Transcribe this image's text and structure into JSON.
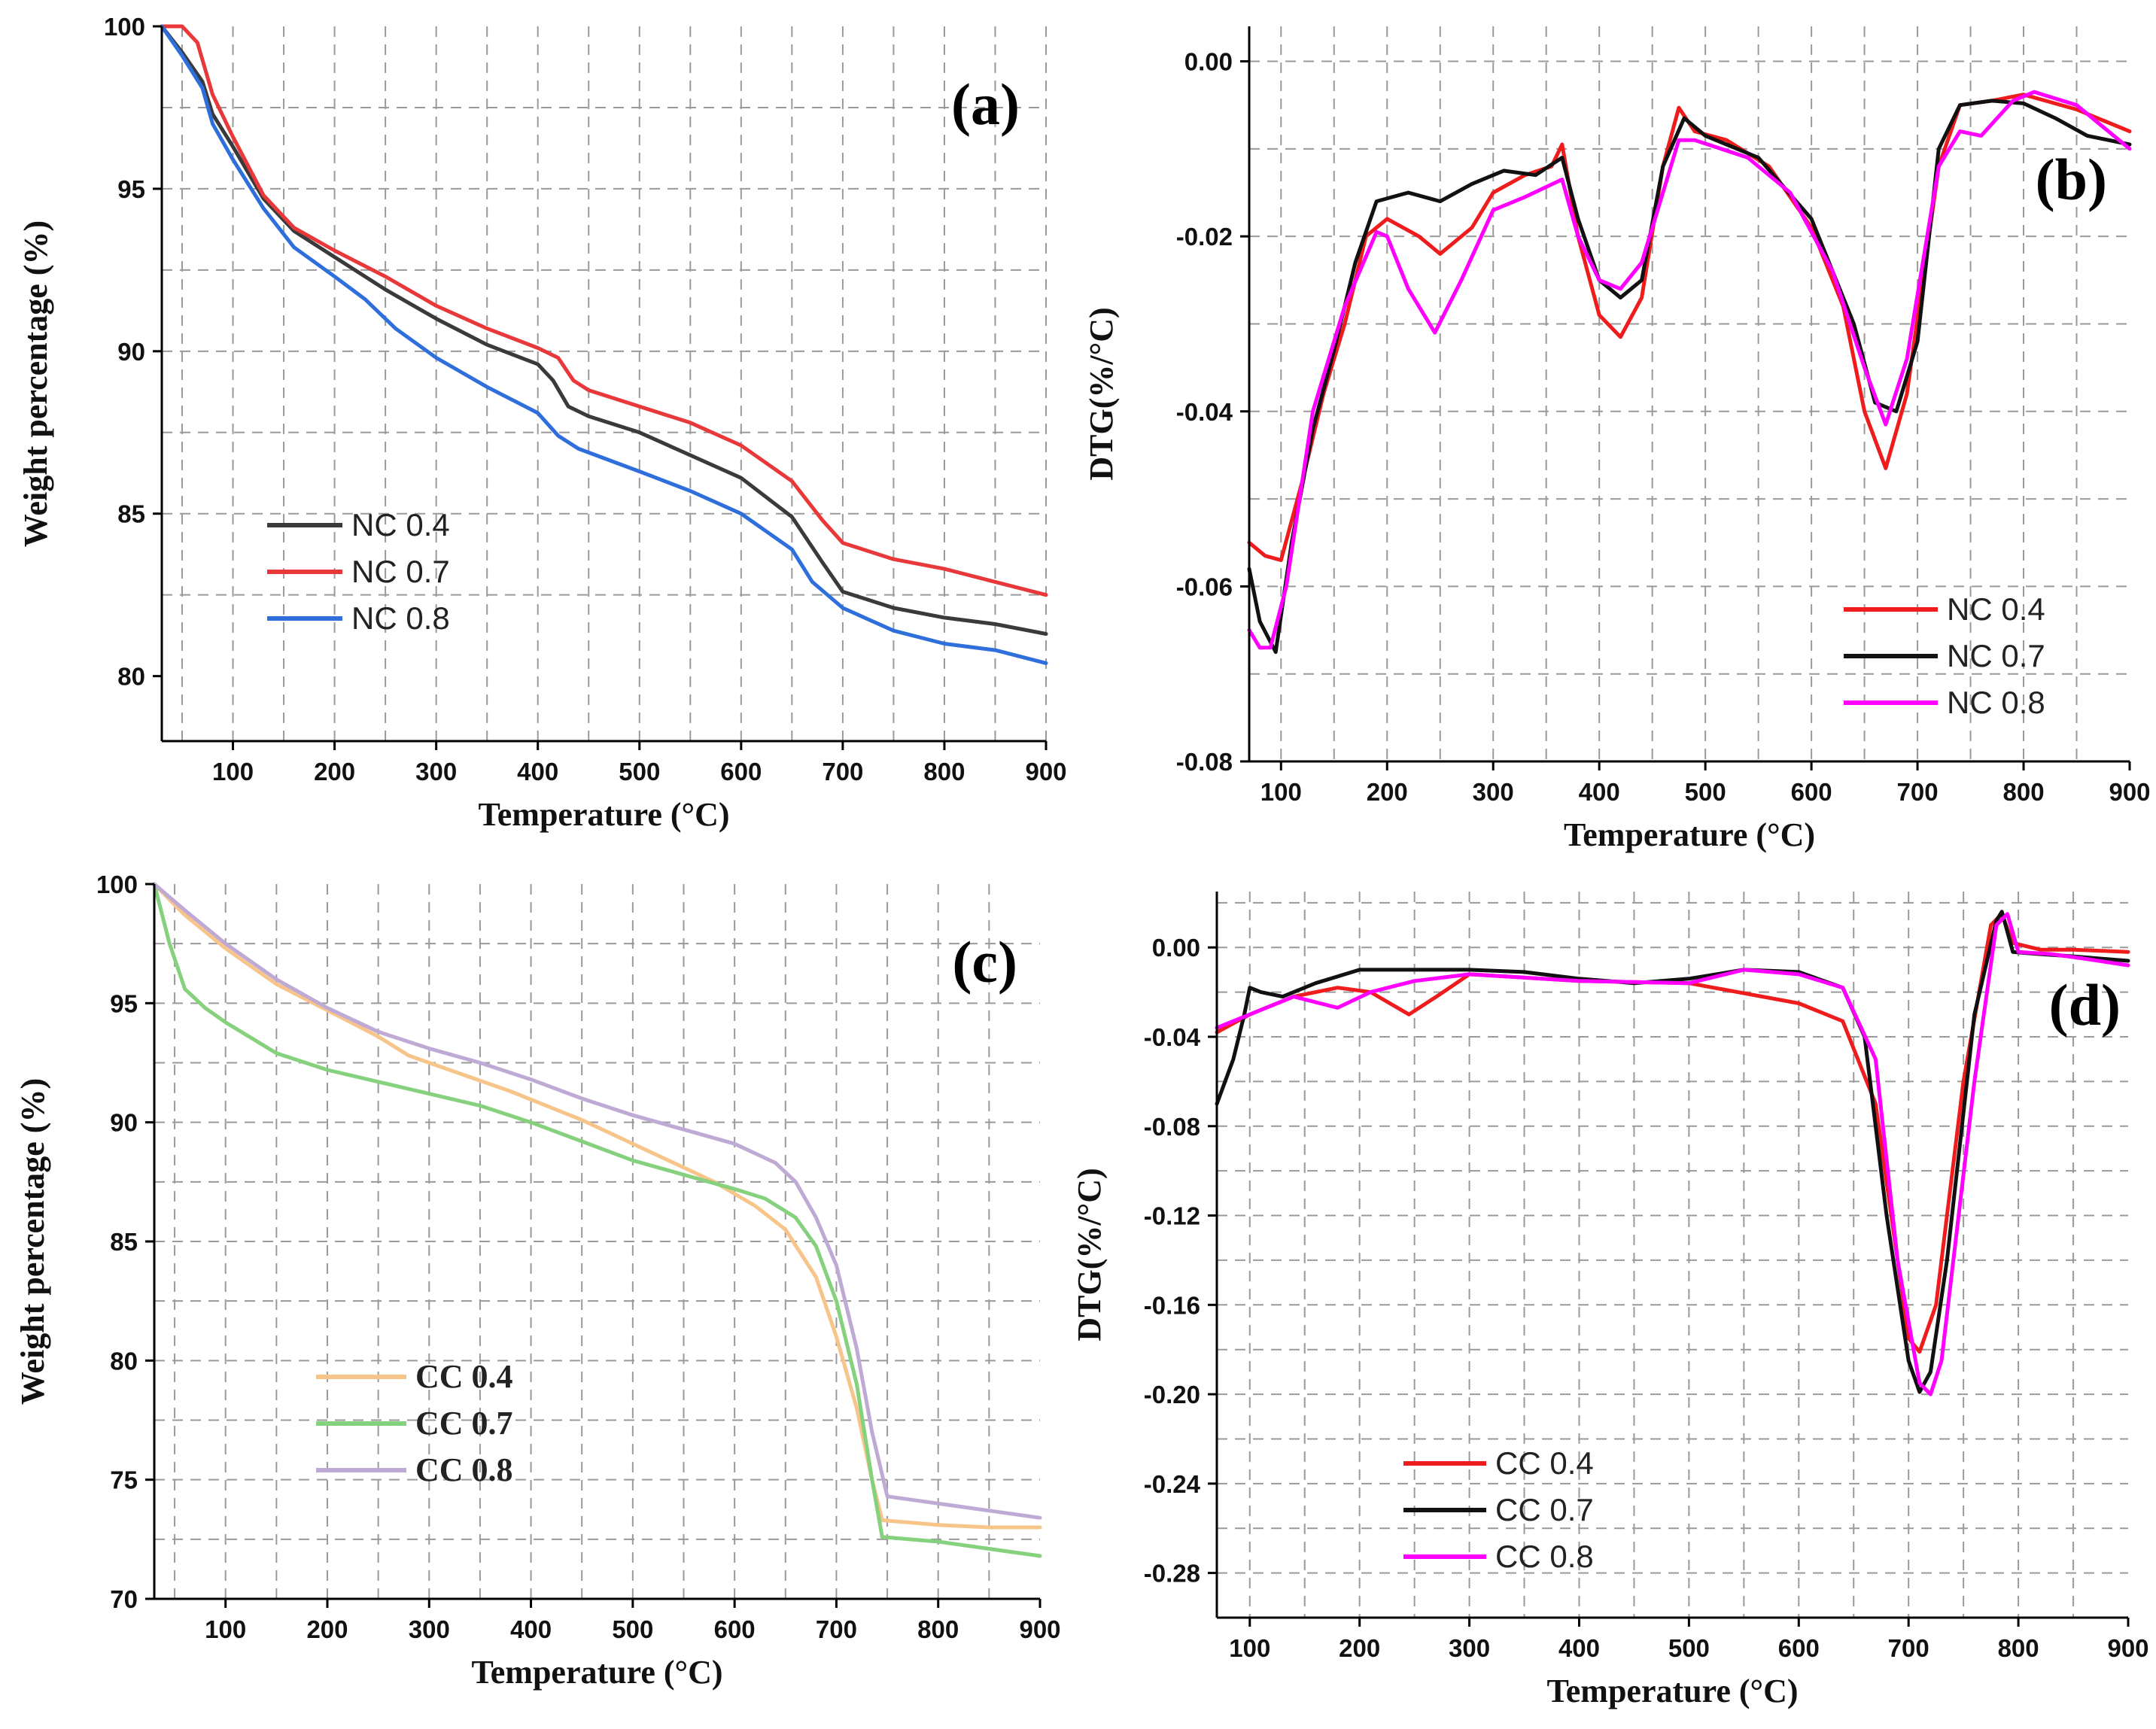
{
  "figure": {
    "colors": {
      "axis": "#000000",
      "grid": "#9a9a9a"
    }
  },
  "chart_data": [
    {
      "id": "a",
      "type": "line",
      "panel_label": "(a)",
      "xlabel": "Temperature (°C)",
      "ylabel": "Weight percentage (%)",
      "xlim": [
        30,
        900
      ],
      "ylim": [
        78,
        100
      ],
      "xticks": [
        "100",
        "200",
        "300",
        "400",
        "500",
        "600",
        "700",
        "800",
        "900"
      ],
      "xtick_values": [
        100,
        200,
        300,
        400,
        500,
        600,
        700,
        800,
        900
      ],
      "yticks": [
        "80",
        "85",
        "90",
        "95",
        "100"
      ],
      "ytick_values": [
        80,
        85,
        90,
        95,
        100
      ],
      "x_grid": [
        50,
        100,
        150,
        200,
        250,
        300,
        350,
        400,
        450,
        500,
        550,
        600,
        650,
        700,
        750,
        800,
        850,
        900
      ],
      "y_grid": [
        82.5,
        85,
        87.5,
        90,
        92.5,
        95,
        97.5
      ],
      "legend_position": "middle-left",
      "series": [
        {
          "name": "NC 0.4",
          "color": "#3a3a3a",
          "x": [
            30,
            50,
            70,
            80,
            100,
            130,
            160,
            200,
            250,
            300,
            350,
            400,
            415,
            430,
            450,
            500,
            550,
            600,
            650,
            680,
            700,
            750,
            800,
            850,
            900
          ],
          "y": [
            100,
            99.2,
            98.3,
            97.3,
            96.3,
            94.7,
            93.7,
            92.9,
            91.9,
            91,
            90.2,
            89.6,
            89.1,
            88.3,
            88,
            87.5,
            86.8,
            86.1,
            84.9,
            83.5,
            82.6,
            82.1,
            81.8,
            81.6,
            81.3
          ]
        },
        {
          "name": "NC 0.7",
          "color": "#e8383a",
          "x": [
            30,
            50,
            65,
            80,
            100,
            130,
            160,
            200,
            250,
            300,
            350,
            400,
            420,
            435,
            450,
            500,
            550,
            600,
            650,
            680,
            700,
            750,
            800,
            850,
            900
          ],
          "y": [
            100,
            100,
            99.5,
            97.9,
            96.6,
            94.8,
            93.8,
            93.1,
            92.3,
            91.4,
            90.7,
            90.1,
            89.8,
            89.1,
            88.8,
            88.3,
            87.8,
            87.1,
            86,
            84.8,
            84.1,
            83.6,
            83.3,
            82.9,
            82.5
          ]
        },
        {
          "name": "NC 0.8",
          "color": "#2f6fdc",
          "x": [
            30,
            50,
            70,
            80,
            100,
            130,
            160,
            200,
            230,
            260,
            300,
            350,
            400,
            420,
            440,
            500,
            550,
            600,
            650,
            670,
            700,
            750,
            800,
            850,
            900
          ],
          "y": [
            100,
            99.1,
            98.1,
            97,
            95.9,
            94.4,
            93.2,
            92.3,
            91.6,
            90.7,
            89.8,
            88.9,
            88.1,
            87.4,
            87,
            86.3,
            85.7,
            85,
            83.9,
            82.9,
            82.1,
            81.4,
            81,
            80.8,
            80.4
          ]
        }
      ]
    },
    {
      "id": "b",
      "type": "line",
      "panel_label": "(b)",
      "xlabel": "Temperature (°C)",
      "ylabel": "DTG(%/°C)",
      "xlim": [
        70,
        900
      ],
      "ylim": [
        -0.08,
        0.004
      ],
      "xticks": [
        "100",
        "200",
        "300",
        "400",
        "500",
        "600",
        "700",
        "800",
        "900"
      ],
      "xtick_values": [
        100,
        200,
        300,
        400,
        500,
        600,
        700,
        800,
        900
      ],
      "yticks": [
        "0.00",
        "-0.02",
        "-0.04",
        "-0.06",
        "-0.08"
      ],
      "ytick_values": [
        0,
        -0.02,
        -0.04,
        -0.06,
        -0.08
      ],
      "x_grid": [
        100,
        150,
        200,
        250,
        300,
        350,
        400,
        450,
        500,
        550,
        600,
        650,
        700,
        750,
        800,
        850
      ],
      "y_grid": [
        -0.07,
        -0.06,
        -0.05,
        -0.04,
        -0.03,
        -0.02,
        -0.01,
        0
      ],
      "legend_position": "bottom-right",
      "series": [
        {
          "name": "NC 0.4",
          "color": "#ee1c1c",
          "x": [
            70,
            85,
            100,
            120,
            140,
            160,
            180,
            200,
            230,
            250,
            280,
            300,
            330,
            355,
            365,
            380,
            400,
            420,
            440,
            460,
            475,
            490,
            520,
            560,
            600,
            630,
            650,
            670,
            690,
            720,
            740,
            770,
            800,
            850,
            900
          ],
          "y": [
            -0.055,
            -0.0565,
            -0.057,
            -0.048,
            -0.038,
            -0.03,
            -0.02,
            -0.018,
            -0.02,
            -0.022,
            -0.019,
            -0.015,
            -0.013,
            -0.012,
            -0.0095,
            -0.02,
            -0.029,
            -0.0315,
            -0.027,
            -0.012,
            -0.0053,
            -0.008,
            -0.009,
            -0.012,
            -0.019,
            -0.028,
            -0.04,
            -0.0465,
            -0.038,
            -0.012,
            -0.005,
            -0.0045,
            -0.0038,
            -0.0055,
            -0.008
          ]
        },
        {
          "name": "NC 0.7",
          "color": "#111111",
          "x": [
            70,
            80,
            95,
            110,
            130,
            150,
            170,
            190,
            220,
            250,
            280,
            310,
            340,
            365,
            380,
            400,
            420,
            440,
            460,
            480,
            500,
            550,
            600,
            640,
            660,
            680,
            700,
            720,
            740,
            770,
            800,
            830,
            860,
            900
          ],
          "y": [
            -0.058,
            -0.064,
            -0.0675,
            -0.055,
            -0.042,
            -0.033,
            -0.023,
            -0.016,
            -0.015,
            -0.016,
            -0.014,
            -0.0125,
            -0.013,
            -0.011,
            -0.018,
            -0.025,
            -0.027,
            -0.025,
            -0.012,
            -0.0065,
            -0.0085,
            -0.011,
            -0.018,
            -0.03,
            -0.039,
            -0.04,
            -0.032,
            -0.01,
            -0.005,
            -0.0045,
            -0.0048,
            -0.0065,
            -0.0085,
            -0.0095
          ]
        },
        {
          "name": "NC 0.8",
          "color": "#ff00ff",
          "x": [
            70,
            80,
            90,
            105,
            130,
            160,
            190,
            200,
            220,
            245,
            270,
            300,
            330,
            365,
            380,
            400,
            420,
            440,
            460,
            475,
            490,
            540,
            580,
            620,
            650,
            670,
            690,
            720,
            740,
            760,
            790,
            810,
            850,
            900
          ],
          "y": [
            -0.065,
            -0.067,
            -0.067,
            -0.06,
            -0.04,
            -0.028,
            -0.0195,
            -0.02,
            -0.026,
            -0.031,
            -0.025,
            -0.017,
            -0.0155,
            -0.0135,
            -0.02,
            -0.025,
            -0.026,
            -0.023,
            -0.015,
            -0.009,
            -0.009,
            -0.011,
            -0.015,
            -0.024,
            -0.035,
            -0.0415,
            -0.034,
            -0.012,
            -0.008,
            -0.0085,
            -0.0045,
            -0.0035,
            -0.005,
            -0.01
          ]
        }
      ]
    },
    {
      "id": "c",
      "type": "line",
      "panel_label": "(c)",
      "xlabel": "Temperature (°C)",
      "ylabel": "Weight percentage (%)",
      "xlim": [
        30,
        900
      ],
      "ylim": [
        70,
        100
      ],
      "xticks": [
        "100",
        "200",
        "300",
        "400",
        "500",
        "600",
        "700",
        "800",
        "900"
      ],
      "xtick_values": [
        100,
        200,
        300,
        400,
        500,
        600,
        700,
        800,
        900
      ],
      "yticks": [
        "70",
        "75",
        "80",
        "85",
        "90",
        "95",
        "100"
      ],
      "ytick_values": [
        70,
        75,
        80,
        85,
        90,
        95,
        100
      ],
      "x_grid": [
        50,
        100,
        150,
        200,
        250,
        300,
        350,
        400,
        450,
        500,
        550,
        600,
        650,
        700,
        750,
        800,
        850
      ],
      "y_grid": [
        72.5,
        75,
        77.5,
        80,
        82.5,
        85,
        87.5,
        90,
        92.5,
        95,
        97.5
      ],
      "legend_position": "bottom-left",
      "series": [
        {
          "name": "CC 0.4",
          "color": "#f7c58a",
          "x": [
            30,
            60,
            100,
            150,
            200,
            250,
            280,
            320,
            380,
            450,
            520,
            580,
            620,
            650,
            680,
            700,
            720,
            735,
            745,
            800,
            850,
            900
          ],
          "y": [
            100,
            98.7,
            97.3,
            95.8,
            94.7,
            93.6,
            92.8,
            92.2,
            91.3,
            90.1,
            88.7,
            87.5,
            86.5,
            85.5,
            83.5,
            81,
            78,
            75,
            73.3,
            73.1,
            73,
            73
          ]
        },
        {
          "name": "CC 0.7",
          "color": "#86d17e",
          "x": [
            30,
            45,
            60,
            80,
            100,
            150,
            200,
            300,
            350,
            400,
            450,
            500,
            550,
            600,
            630,
            660,
            680,
            700,
            720,
            735,
            745,
            800,
            850,
            900
          ],
          "y": [
            100,
            97.5,
            95.6,
            94.8,
            94.2,
            92.9,
            92.2,
            91.2,
            90.7,
            90,
            89.2,
            88.4,
            87.8,
            87.2,
            86.8,
            86,
            84.8,
            82.5,
            79,
            75,
            72.6,
            72.4,
            72.1,
            71.8
          ]
        },
        {
          "name": "CC 0.8",
          "color": "#bfaad5",
          "x": [
            30,
            60,
            100,
            150,
            200,
            250,
            300,
            350,
            400,
            450,
            500,
            550,
            600,
            640,
            660,
            680,
            700,
            720,
            735,
            750,
            800,
            850,
            900
          ],
          "y": [
            100,
            98.9,
            97.5,
            96,
            94.8,
            93.8,
            93.1,
            92.5,
            91.8,
            91,
            90.3,
            89.7,
            89.1,
            88.3,
            87.5,
            86,
            84,
            80.5,
            77,
            74.3,
            74,
            73.7,
            73.4
          ]
        }
      ]
    },
    {
      "id": "d",
      "type": "line",
      "panel_label": "(d)",
      "xlabel": "Temperature (°C)",
      "ylabel": "DTG(%/°C)",
      "xlim": [
        70,
        900
      ],
      "ylim": [
        -0.3,
        0.025
      ],
      "xticks": [
        "100",
        "200",
        "300",
        "400",
        "500",
        "600",
        "700",
        "800",
        "900"
      ],
      "xtick_values": [
        100,
        200,
        300,
        400,
        500,
        600,
        700,
        800,
        900
      ],
      "yticks": [
        "0.00",
        "-0.04",
        "-0.08",
        "-0.12",
        "-0.16",
        "-0.20",
        "-0.24",
        "-0.28"
      ],
      "ytick_values": [
        0,
        -0.04,
        -0.08,
        -0.12,
        -0.16,
        -0.2,
        -0.24,
        -0.28
      ],
      "x_grid": [
        100,
        150,
        200,
        250,
        300,
        350,
        400,
        450,
        500,
        550,
        600,
        650,
        700,
        750,
        800,
        850
      ],
      "y_grid": [
        -0.28,
        -0.26,
        -0.24,
        -0.22,
        -0.2,
        -0.18,
        -0.16,
        -0.14,
        -0.12,
        -0.1,
        -0.08,
        -0.06,
        -0.04,
        -0.02,
        0,
        0.02
      ],
      "legend_position": "bottom-left",
      "series": [
        {
          "name": "CC 0.4",
          "color": "#ee1c1c",
          "x": [
            70,
            100,
            140,
            180,
            210,
            245,
            270,
            300,
            400,
            500,
            600,
            640,
            670,
            690,
            700,
            710,
            725,
            750,
            775,
            785,
            795,
            820,
            850,
            900
          ],
          "y": [
            -0.038,
            -0.03,
            -0.022,
            -0.018,
            -0.02,
            -0.03,
            -0.022,
            -0.012,
            -0.015,
            -0.016,
            -0.025,
            -0.033,
            -0.07,
            -0.14,
            -0.175,
            -0.181,
            -0.16,
            -0.06,
            0.01,
            0.015,
            0.002,
            -0.001,
            -0.001,
            -0.002
          ]
        },
        {
          "name": "CC 0.7",
          "color": "#111111",
          "x": [
            70,
            85,
            95,
            100,
            110,
            130,
            160,
            200,
            300,
            350,
            400,
            450,
            500,
            550,
            600,
            640,
            660,
            680,
            700,
            710,
            720,
            735,
            760,
            780,
            785,
            795,
            820,
            850,
            900
          ],
          "y": [
            -0.07,
            -0.05,
            -0.03,
            -0.018,
            -0.02,
            -0.022,
            -0.016,
            -0.01,
            -0.01,
            -0.011,
            -0.014,
            -0.016,
            -0.014,
            -0.01,
            -0.011,
            -0.018,
            -0.04,
            -0.12,
            -0.185,
            -0.199,
            -0.19,
            -0.14,
            -0.03,
            0.012,
            0.016,
            -0.002,
            -0.003,
            -0.004,
            -0.006
          ]
        },
        {
          "name": "CC 0.8",
          "color": "#ff00ff",
          "x": [
            70,
            100,
            140,
            180,
            210,
            250,
            300,
            400,
            500,
            550,
            600,
            640,
            670,
            690,
            710,
            720,
            730,
            760,
            780,
            790,
            800,
            830,
            860,
            900
          ],
          "y": [
            -0.036,
            -0.03,
            -0.022,
            -0.027,
            -0.02,
            -0.015,
            -0.012,
            -0.015,
            -0.016,
            -0.01,
            -0.012,
            -0.018,
            -0.05,
            -0.14,
            -0.195,
            -0.2,
            -0.185,
            -0.06,
            0.01,
            0.015,
            -0.002,
            -0.003,
            -0.005,
            -0.008
          ]
        }
      ]
    }
  ]
}
